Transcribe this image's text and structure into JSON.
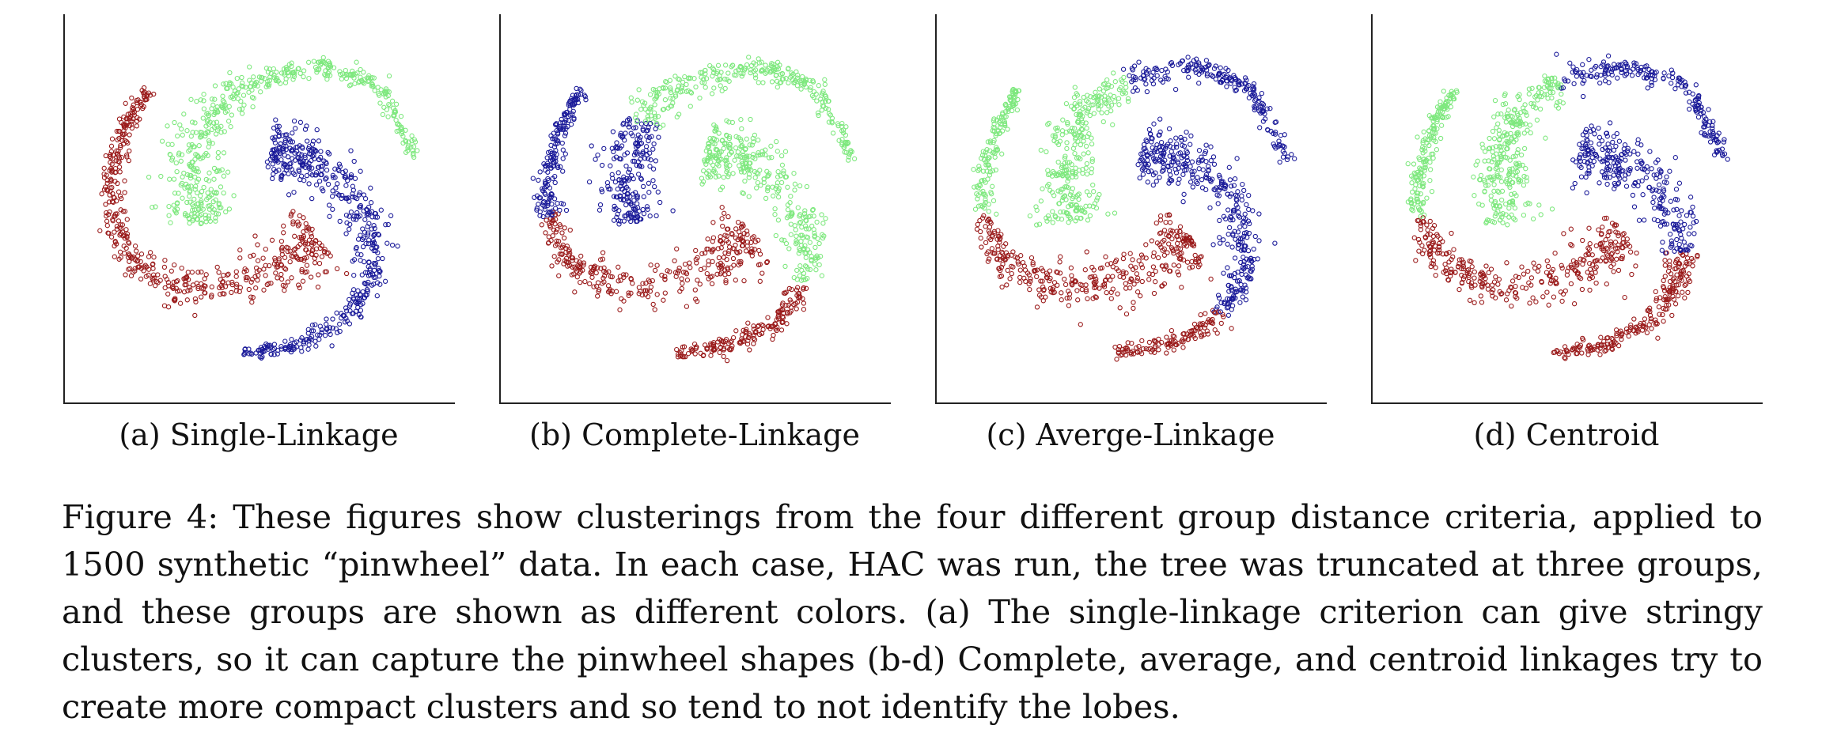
{
  "figure": {
    "caption": "Figure 4: These figures show clusterings from the four different group distance criteria, applied to 1500 synthetic “pinwheel” data. In each case, HAC was run, the tree was truncated at three groups, and these groups are shown as different colors. (a) The single-linkage criterion can give stringy clusters, so it can capture the pinwheel shapes (b-d) Complete, average, and centroid linkages try to create more compact clusters and so tend to not identify the lobes.",
    "colors": {
      "green": "#7ee87e",
      "blue": "#1a1a99",
      "red": "#9a1a1a",
      "axis": "#222222"
    }
  },
  "chart_data": [
    {
      "type": "scatter",
      "label": "(a) Single-Linkage",
      "title": "",
      "xlabel": "",
      "ylabel": "",
      "grid": false,
      "n_points": 1500,
      "clusters": [
        {
          "color": "green",
          "lobe": "top"
        },
        {
          "color": "blue",
          "lobe": "right"
        },
        {
          "color": "red",
          "lobe": "bottom-left"
        }
      ],
      "split": {
        "green": [
          0,
          1
        ],
        "blue": [
          0,
          1
        ],
        "red": [
          0,
          1
        ]
      }
    },
    {
      "type": "scatter",
      "label": "(b) Complete-Linkage",
      "title": "",
      "xlabel": "",
      "ylabel": "",
      "grid": false,
      "n_points": 1500,
      "clusters": [
        {
          "color": "blue",
          "lobe": "top-head and left tail"
        },
        {
          "color": "green",
          "lobe": "top arc and inner right"
        },
        {
          "color": "red",
          "lobe": "bottom and right tail"
        }
      ],
      "split": {
        "green": [
          0,
          0.32
        ],
        "blue": [
          0,
          0.55
        ],
        "red": [
          0,
          0.6
        ]
      }
    },
    {
      "type": "scatter",
      "label": "(c) Averge-Linkage",
      "title": "",
      "xlabel": "",
      "ylabel": "",
      "grid": false,
      "n_points": 1500,
      "clusters": [
        {
          "color": "green",
          "lobe": "top and left"
        },
        {
          "color": "blue",
          "lobe": "top arc tail and right"
        },
        {
          "color": "red",
          "lobe": "bottom"
        }
      ],
      "split": {
        "green": [
          0,
          0.5
        ],
        "blue": [
          0,
          0.65
        ],
        "red": [
          0,
          0.6
        ]
      }
    },
    {
      "type": "scatter",
      "label": "(d) Centroid",
      "title": "",
      "xlabel": "",
      "ylabel": "",
      "grid": false,
      "n_points": 1500,
      "clusters": [
        {
          "color": "green",
          "lobe": "top and left"
        },
        {
          "color": "blue",
          "lobe": "top arc tail and right"
        },
        {
          "color": "red",
          "lobe": "bottom and right"
        }
      ],
      "split": {
        "green": [
          0,
          0.5
        ],
        "blue": [
          0,
          0.45
        ],
        "red": [
          0,
          0.6
        ]
      }
    }
  ]
}
